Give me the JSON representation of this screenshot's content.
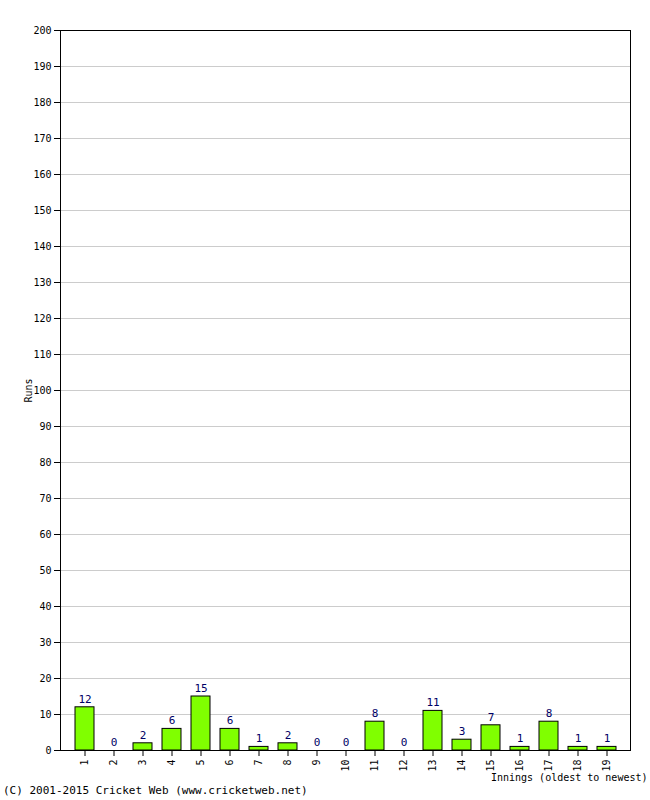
{
  "chart_data": {
    "type": "bar",
    "categories": [
      1,
      2,
      3,
      4,
      5,
      6,
      7,
      8,
      9,
      10,
      11,
      12,
      13,
      14,
      15,
      16,
      17,
      18,
      19
    ],
    "values": [
      12,
      0,
      2,
      6,
      15,
      6,
      1,
      2,
      0,
      0,
      8,
      0,
      11,
      3,
      7,
      1,
      8,
      1,
      1
    ],
    "color": "#80ff00",
    "x_label": "Innings (oldest to newest)",
    "y_label": "Runs",
    "ylim": [
      0,
      200
    ],
    "yticks": [
      0,
      10,
      20,
      30,
      40,
      50,
      60,
      70,
      80,
      90,
      100,
      110,
      120,
      130,
      140,
      150,
      160,
      170,
      180,
      190,
      200
    ],
    "grid": true,
    "data_labels": true,
    "annotations": [
      "(C) 2001-2015 Cricket Web (www.cricketweb.net)"
    ]
  }
}
